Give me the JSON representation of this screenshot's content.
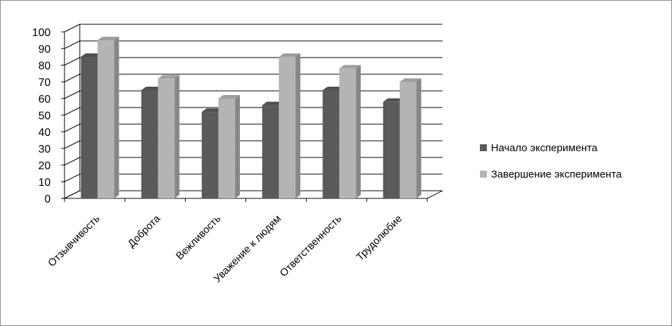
{
  "chart_data": {
    "type": "bar",
    "categories": [
      "Отзывчивость",
      "Доброта",
      "Вежливость",
      "Уважение к людям",
      "Ответственность",
      "Трудолюбие"
    ],
    "series": [
      {
        "name": "Начало эксперимента",
        "values": [
          85,
          65,
          52,
          56,
          65,
          58
        ],
        "color": "#5a5a5a"
      },
      {
        "name": "Завершение эксперимента",
        "values": [
          95,
          72,
          60,
          85,
          78,
          70
        ],
        "color": "#b4b4b4"
      }
    ],
    "yticks": [
      "0",
      "10",
      "20",
      "30",
      "40",
      "50",
      "60",
      "70",
      "80",
      "90",
      "100"
    ],
    "ylim": [
      0,
      100
    ],
    "grid": true,
    "legend_position": "right",
    "style": "3d-clustered-column"
  }
}
